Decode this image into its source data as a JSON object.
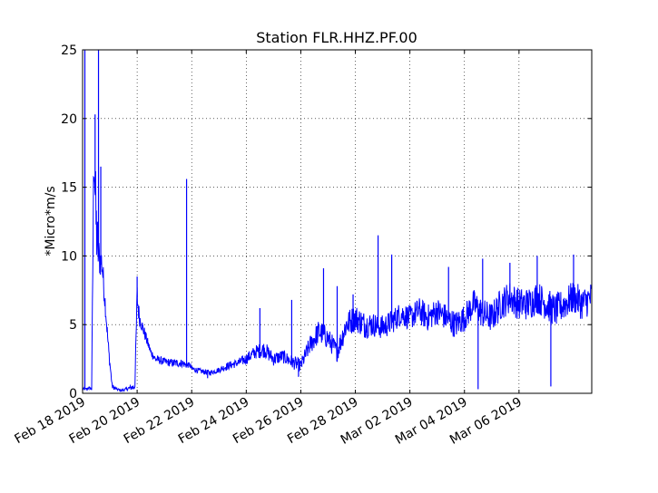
{
  "chart_data": {
    "type": "line",
    "title": "Station FLR.HHZ.PF.00",
    "xlabel": "",
    "ylabel": "*Micro*m/s",
    "ylim": [
      0,
      25
    ],
    "xlim": [
      "2019-02-18",
      "2019-03-08T16:00"
    ],
    "grid": true,
    "legend": "none",
    "line_color": "#0000ff",
    "y_ticks": [
      "0",
      "5",
      "10",
      "15",
      "20",
      "25"
    ],
    "x_ticks": [
      "Feb 18 2019",
      "Feb 20 2019",
      "Feb 22 2019",
      "Feb 24 2019",
      "Feb 26 2019",
      "Feb 28 2019",
      "Mar 02 2019",
      "Mar 04 2019",
      "Mar 06 2019"
    ],
    "x_tick_dates": [
      "2019-02-18",
      "2019-02-20",
      "2019-02-22",
      "2019-02-24",
      "2019-02-26",
      "2019-02-28",
      "2019-03-02",
      "2019-03-04",
      "2019-03-06"
    ],
    "series": [
      {
        "x": [
          "2019-02-18T00:00",
          "2019-02-18T03:00",
          "2019-02-18T06:00",
          "2019-02-18T08:00",
          "2019-02-18T10:00",
          "2019-02-18T12:00",
          "2019-02-18T14:00",
          "2019-02-18T17:00",
          "2019-02-18T20:00",
          "2019-02-18T23:00",
          "2019-02-19T02:00",
          "2019-02-19T06:00",
          "2019-02-19T10:00",
          "2019-02-19T14:00",
          "2019-02-19T18:00",
          "2019-02-19T22:00",
          "2019-02-20T00:00",
          "2019-02-20T02:00",
          "2019-02-20T04:00",
          "2019-02-20T08:00",
          "2019-02-20T12:00",
          "2019-02-20T16:00",
          "2019-02-21T00:00",
          "2019-02-21T08:00",
          "2019-02-21T16:00",
          "2019-02-21T20:00",
          "2019-02-21T22:00",
          "2019-02-22T00:00",
          "2019-02-22T08:00",
          "2019-02-22T16:00",
          "2019-02-23T00:00",
          "2019-02-23T08:00",
          "2019-02-23T16:00",
          "2019-02-24T00:00",
          "2019-02-24T08:00",
          "2019-02-24T16:00",
          "2019-02-25T00:00",
          "2019-02-25T08:00",
          "2019-02-25T16:00",
          "2019-02-26T00:00",
          "2019-02-26T08:00",
          "2019-02-26T16:00",
          "2019-02-27T00:00",
          "2019-02-27T08:00",
          "2019-02-27T16:00",
          "2019-02-28T00:00",
          "2019-02-28T08:00",
          "2019-02-28T16:00",
          "2019-03-01T00:00",
          "2019-03-01T08:00",
          "2019-03-01T16:00",
          "2019-03-02T00:00",
          "2019-03-02T08:00",
          "2019-03-02T16:00",
          "2019-03-03T00:00",
          "2019-03-03T08:00",
          "2019-03-03T16:00",
          "2019-03-04T00:00",
          "2019-03-04T08:00",
          "2019-03-04T16:00",
          "2019-03-05T00:00",
          "2019-03-05T08:00",
          "2019-03-05T16:00",
          "2019-03-06T00:00",
          "2019-03-06T08:00",
          "2019-03-06T16:00",
          "2019-03-07T00:00",
          "2019-03-07T08:00",
          "2019-03-07T16:00",
          "2019-03-08T00:00",
          "2019-03-08T08:00",
          "2019-03-08T16:00"
        ],
        "y": [
          0.3,
          0.3,
          0.4,
          0.3,
          18.0,
          12.0,
          10.0,
          9.5,
          6.5,
          3.0,
          0.5,
          0.3,
          0.2,
          0.3,
          0.4,
          0.5,
          7.0,
          5.5,
          5.0,
          4.0,
          3.0,
          2.5,
          2.3,
          2.2,
          2.2,
          2.0,
          2.1,
          1.8,
          1.6,
          1.5,
          1.7,
          2.0,
          2.2,
          2.5,
          3.0,
          3.2,
          2.5,
          2.7,
          2.3,
          2.0,
          3.5,
          4.5,
          4.0,
          3.0,
          5.0,
          5.5,
          5.0,
          5.0,
          4.8,
          5.2,
          5.8,
          5.5,
          6.0,
          5.5,
          6.0,
          5.5,
          5.0,
          5.5,
          6.5,
          5.8,
          5.5,
          6.5,
          7.0,
          6.5,
          6.5,
          7.0,
          6.5,
          6.0,
          6.5,
          7.0,
          6.5,
          7.0
        ],
        "amp": [
          0.1,
          0.1,
          0.1,
          0.1,
          2.5,
          3.0,
          1.5,
          1.2,
          0.8,
          0.5,
          0.2,
          0.1,
          0.1,
          0.1,
          0.2,
          0.3,
          1.2,
          0.6,
          0.5,
          0.4,
          0.3,
          0.3,
          0.3,
          0.3,
          0.3,
          0.2,
          0.2,
          0.2,
          0.2,
          0.2,
          0.2,
          0.3,
          0.3,
          0.4,
          0.5,
          0.6,
          0.5,
          0.5,
          0.5,
          0.5,
          0.7,
          0.9,
          0.8,
          0.7,
          1.0,
          1.0,
          1.0,
          0.9,
          0.9,
          0.9,
          0.9,
          0.9,
          1.0,
          1.0,
          1.0,
          1.0,
          1.0,
          1.0,
          1.1,
          1.1,
          1.1,
          1.2,
          1.2,
          1.2,
          1.2,
          1.2,
          1.2,
          1.2,
          1.2,
          1.2,
          1.2,
          1.2
        ],
        "spikes": [
          {
            "x": "2019-02-18T02:00",
            "y": 25
          },
          {
            "x": "2019-02-18T11:00",
            "y": 20.3
          },
          {
            "x": "2019-02-18T14:00",
            "y": 25
          },
          {
            "x": "2019-02-18T16:00",
            "y": 16.5
          },
          {
            "x": "2019-02-20T00:00",
            "y": 8.5
          },
          {
            "x": "2019-02-21T19:30",
            "y": 15.6
          },
          {
            "x": "2019-02-24T12:00",
            "y": 6.2
          },
          {
            "x": "2019-02-25T16:00",
            "y": 6.8
          },
          {
            "x": "2019-02-26T20:00",
            "y": 9.1
          },
          {
            "x": "2019-02-27T08:00",
            "y": 7.8
          },
          {
            "x": "2019-02-27T22:00",
            "y": 7.2
          },
          {
            "x": "2019-02-28T20:00",
            "y": 11.5
          },
          {
            "x": "2019-03-01T08:00",
            "y": 10.1
          },
          {
            "x": "2019-03-03T10:00",
            "y": 9.2
          },
          {
            "x": "2019-03-04T16:00",
            "y": 9.8
          },
          {
            "x": "2019-03-05T16:00",
            "y": 9.5
          },
          {
            "x": "2019-03-06T16:00",
            "y": 10.0
          },
          {
            "x": "2019-03-08T00:00",
            "y": 10.1
          },
          {
            "x": "2019-03-04T12:00",
            "y": 0.3
          },
          {
            "x": "2019-03-07T04:00",
            "y": 0.5
          },
          {
            "x": "2019-02-22T14:00",
            "y": 1.1
          },
          {
            "x": "2019-02-25T22:00",
            "y": 1.2
          }
        ]
      }
    ]
  }
}
